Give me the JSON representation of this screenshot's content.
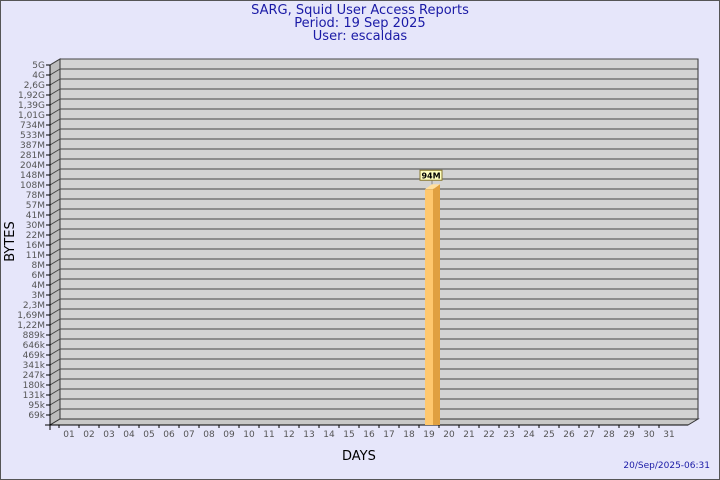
{
  "chart_data": {
    "type": "bar",
    "title": "SARG, Squid User Access Reports",
    "subtitle": "Period: 19 Sep 2025",
    "user": "User: escaldas",
    "xlabel": "DAYS",
    "ylabel": "BYTES",
    "scale": "log",
    "grid": true,
    "categories": [
      "01",
      "02",
      "03",
      "04",
      "05",
      "06",
      "07",
      "08",
      "09",
      "10",
      "11",
      "12",
      "13",
      "14",
      "15",
      "16",
      "17",
      "18",
      "19",
      "20",
      "21",
      "22",
      "23",
      "24",
      "25",
      "26",
      "27",
      "28",
      "29",
      "30",
      "31"
    ],
    "y_ticks": [
      "5G",
      "4G",
      "2,6G",
      "1,92G",
      "1,39G",
      "1,01G",
      "734M",
      "533M",
      "387M",
      "281M",
      "204M",
      "148M",
      "108M",
      "78M",
      "57M",
      "41M",
      "30M",
      "22M",
      "16M",
      "11M",
      "8M",
      "6M",
      "4M",
      "3M",
      "2,3M",
      "1,69M",
      "1,22M",
      "889k",
      "646k",
      "469k",
      "341k",
      "247k",
      "180k",
      "131k",
      "95k",
      "69k"
    ],
    "bars": [
      {
        "day": "19",
        "value": "94M"
      }
    ],
    "colors": {
      "bar": "#ffc86e",
      "bar_side": "#e0a040",
      "plot": "#d3d3d3",
      "background": "#e6e6fa",
      "title": "#1a1aa6"
    }
  },
  "footer": "20/Sep/2025-06:31"
}
